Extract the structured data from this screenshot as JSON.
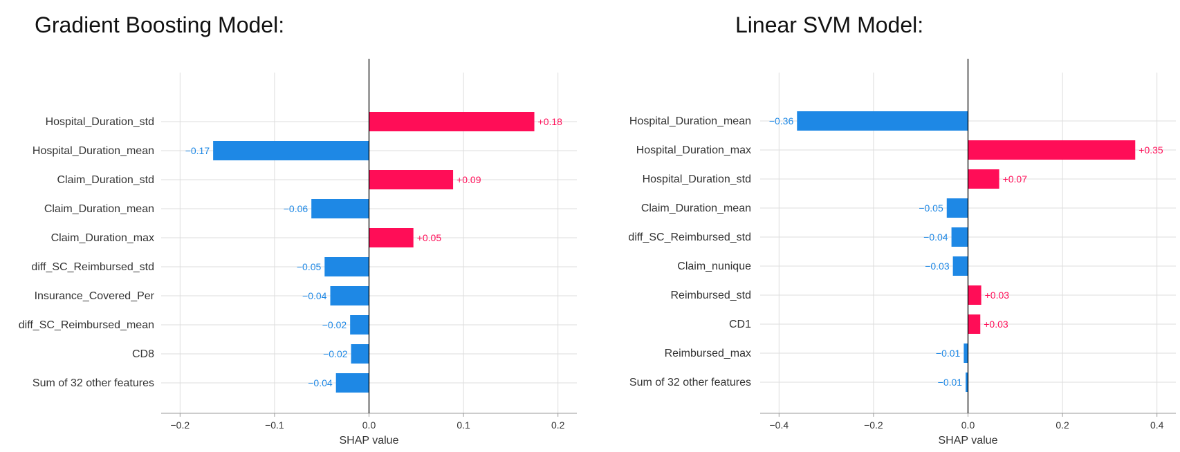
{
  "titles": [
    "Gradient Boosting Model:",
    "Linear SVM Model:"
  ],
  "colors": {
    "positive": "#ff0d57",
    "negative": "#1e88e5",
    "grid": "#dddddd",
    "axis": "#000000"
  },
  "chart_data": [
    {
      "type": "bar",
      "title": "Gradient Boosting Model:",
      "xlabel": "SHAP value",
      "ylabel": "",
      "xlim": [
        -0.22,
        0.22
      ],
      "xticks": [
        -0.2,
        -0.1,
        0.0,
        0.1,
        0.2
      ],
      "xtick_labels": [
        "−0.2",
        "−0.1",
        "0.0",
        "0.1",
        "0.2"
      ],
      "grid": true,
      "categories": [
        "Hospital_Duration_std",
        "Hospital_Duration_mean",
        "Claim_Duration_std",
        "Claim_Duration_mean",
        "Claim_Duration_max",
        "diff_SC_Reimbursed_std",
        "Insurance_Covered_Per",
        "diff_SC_Reimbursed_mean",
        "CD8",
        "Sum of 32 other features"
      ],
      "values": [
        0.175,
        -0.165,
        0.089,
        -0.061,
        0.047,
        -0.047,
        -0.041,
        -0.02,
        -0.019,
        -0.035
      ],
      "value_labels": [
        "+0.18",
        "−0.17",
        "+0.09",
        "−0.06",
        "+0.05",
        "−0.05",
        "−0.04",
        "−0.02",
        "−0.02",
        "−0.04"
      ]
    },
    {
      "type": "bar",
      "title": "Linear SVM Model:",
      "xlabel": "SHAP value",
      "ylabel": "",
      "xlim": [
        -0.44,
        0.44
      ],
      "xticks": [
        -0.4,
        -0.2,
        0.0,
        0.2,
        0.4
      ],
      "xtick_labels": [
        "−0.4",
        "−0.2",
        "0.0",
        "0.2",
        "0.4"
      ],
      "grid": true,
      "categories": [
        "Hospital_Duration_mean",
        "Hospital_Duration_max",
        "Hospital_Duration_std",
        "Claim_Duration_mean",
        "diff_SC_Reimbursed_std",
        "Claim_nunique",
        "Reimbursed_std",
        "CD1",
        "Reimbursed_max",
        "Sum of 32 other features"
      ],
      "values": [
        -0.362,
        0.354,
        0.066,
        -0.045,
        -0.035,
        -0.032,
        0.028,
        0.026,
        -0.009,
        -0.005
      ],
      "value_labels": [
        "−0.36",
        "+0.35",
        "+0.07",
        "−0.05",
        "−0.04",
        "−0.03",
        "+0.03",
        "+0.03",
        "−0.01",
        "−0.01"
      ]
    }
  ]
}
